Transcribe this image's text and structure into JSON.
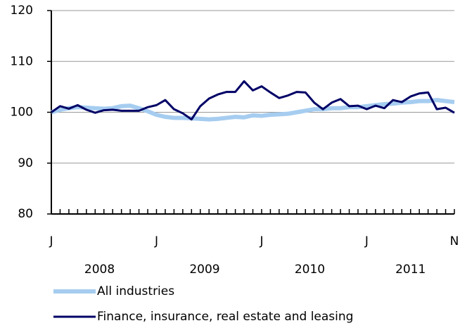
{
  "chart_data": {
    "type": "line",
    "categories": [
      "J",
      null,
      null,
      null,
      null,
      null,
      null,
      null,
      null,
      null,
      null,
      null,
      "J",
      null,
      null,
      null,
      null,
      null,
      null,
      null,
      null,
      null,
      null,
      null,
      "J",
      null,
      null,
      null,
      null,
      null,
      null,
      null,
      null,
      null,
      null,
      null,
      "J",
      null,
      null,
      null,
      null,
      null,
      null,
      null,
      null,
      null,
      "N"
    ],
    "year_labels": [
      "2008",
      "2009",
      "2010",
      "2011"
    ],
    "series": [
      {
        "name": "All industries",
        "color": "#a6cdf0",
        "values": [
          100,
          100.5,
          100.8,
          101,
          100.9,
          100.8,
          100.7,
          100.8,
          101.2,
          101.3,
          100.8,
          100.2,
          99.5,
          99.1,
          98.9,
          98.9,
          98.8,
          98.7,
          98.6,
          98.7,
          98.9,
          99.1,
          99.0,
          99.4,
          99.3,
          99.5,
          99.6,
          99.7,
          100.0,
          100.3,
          100.6,
          100.6,
          100.8,
          100.8,
          101.0,
          101.0,
          101.2,
          101.4,
          101.6,
          101.7,
          101.9,
          102.0,
          102.2,
          102.2,
          102.4,
          102.2,
          102.0
        ]
      },
      {
        "name": "Finance, insurance, real estate and leasing",
        "color": "#000066",
        "values": [
          100,
          101.2,
          100.7,
          101.4,
          100.5,
          99.9,
          100.4,
          100.5,
          100.3,
          100.3,
          100.3,
          101,
          101.4,
          102.4,
          100.6,
          99.8,
          98.6,
          101.2,
          102.7,
          103.5,
          104,
          104,
          106.1,
          104.3,
          105.1,
          103.9,
          102.8,
          103.3,
          104,
          103.9,
          101.9,
          100.6,
          101.9,
          102.6,
          101.2,
          101.3,
          100.6,
          101.3,
          100.8,
          102.4,
          102,
          103.1,
          103.7,
          103.9,
          100.6,
          100.9,
          99.9
        ]
      }
    ],
    "ylim": [
      80,
      120
    ],
    "yticks": [
      80,
      90,
      100,
      110,
      120
    ],
    "grid": true
  }
}
